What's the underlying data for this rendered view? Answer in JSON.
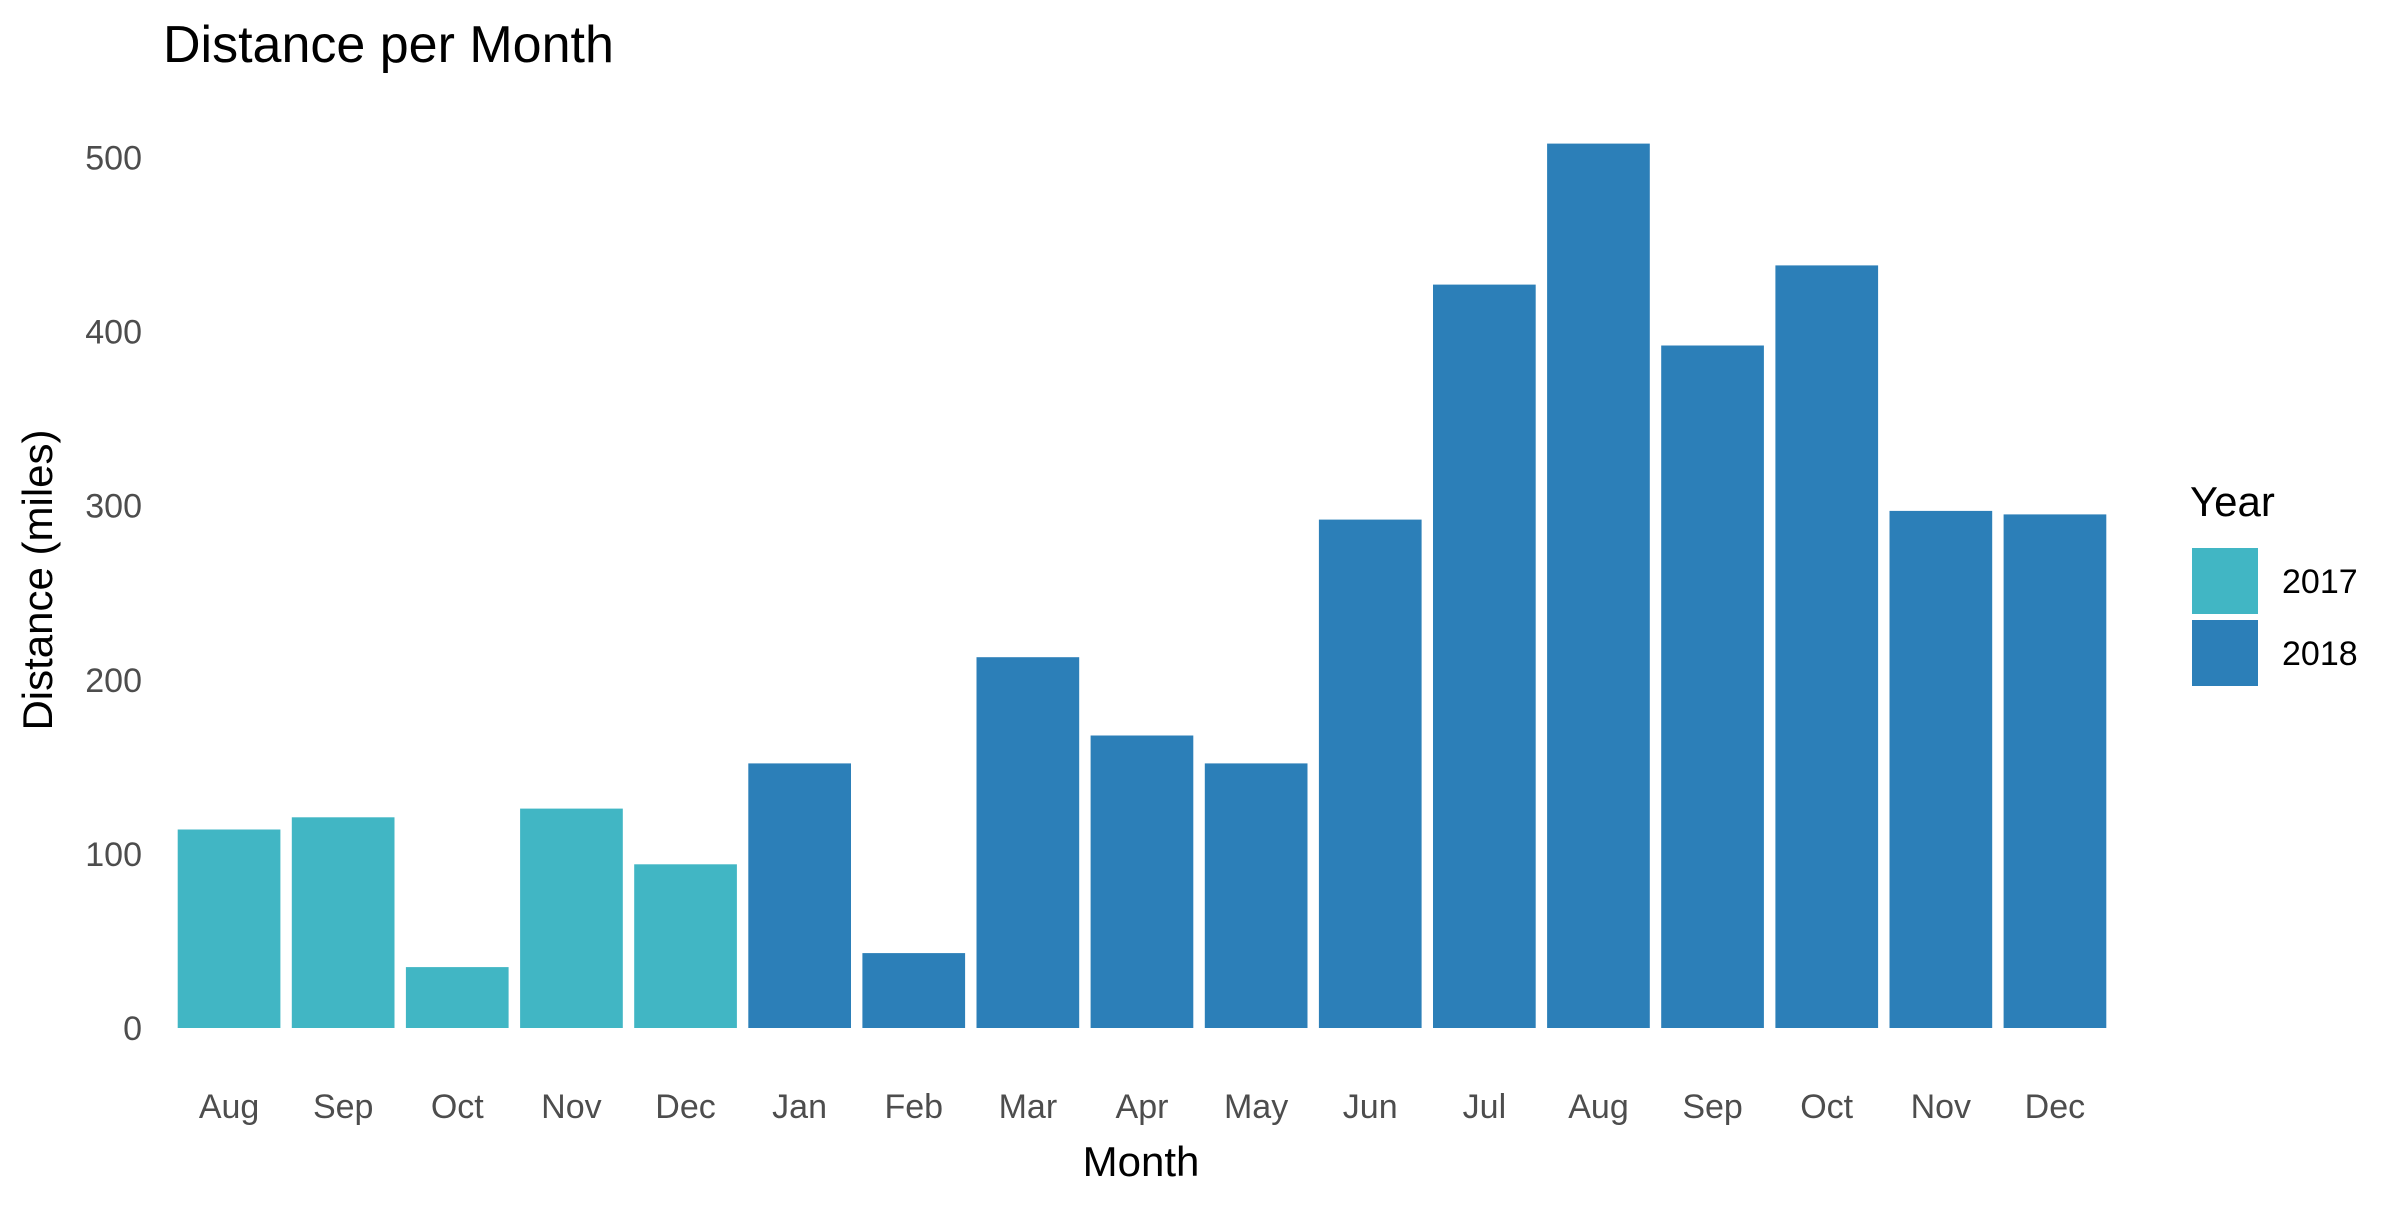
{
  "chart_data": {
    "type": "bar",
    "title": "Distance per Month",
    "xlabel": "Month",
    "ylabel": "Distance (miles)",
    "ylim": [
      0,
      520
    ],
    "yticks": [
      0,
      100,
      200,
      300,
      400,
      500
    ],
    "grid": false,
    "legend": {
      "title": "Year",
      "placement": "right",
      "entries": [
        {
          "label": "2017",
          "color": "#41b6c4"
        },
        {
          "label": "2018",
          "color": "#2c7fb8"
        }
      ]
    },
    "categories": [
      "Aug",
      "Sep",
      "Oct",
      "Nov",
      "Dec",
      "Jan",
      "Feb",
      "Mar",
      "Apr",
      "May",
      "Jun",
      "Jul",
      "Aug",
      "Sep",
      "Oct",
      "Nov",
      "Dec"
    ],
    "years": [
      "2017",
      "2017",
      "2017",
      "2017",
      "2017",
      "2018",
      "2018",
      "2018",
      "2018",
      "2018",
      "2018",
      "2018",
      "2018",
      "2018",
      "2018",
      "2018",
      "2018"
    ],
    "values": [
      114,
      121,
      35,
      126,
      94,
      152,
      43,
      213,
      168,
      152,
      292,
      427,
      508,
      392,
      438,
      297,
      295
    ]
  }
}
